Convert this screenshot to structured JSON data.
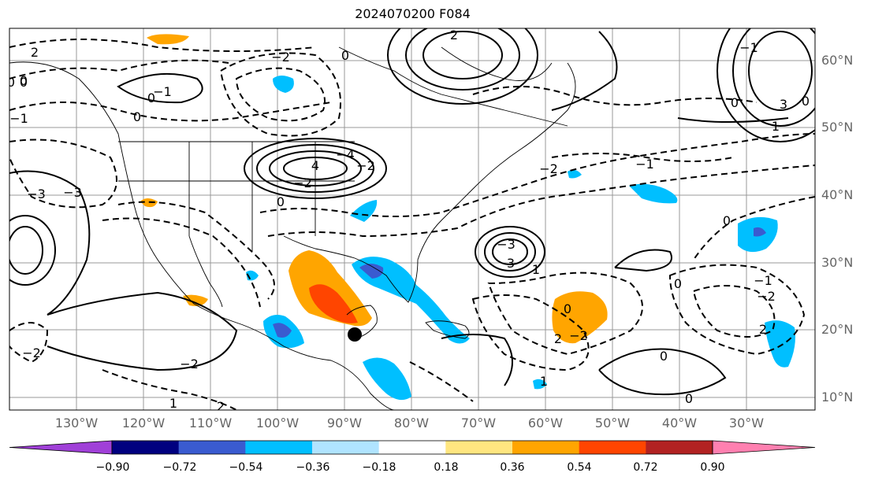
{
  "title": "2024070200 F084",
  "lat_labels": [
    "60°N",
    "50°N",
    "40°N",
    "30°N",
    "20°N",
    "10°N"
  ],
  "lon_labels": [
    "130°W",
    "120°W",
    "110°W",
    "100°W",
    "90°W",
    "80°W",
    "70°W",
    "60°W",
    "50°W",
    "40°W",
    "30°W"
  ],
  "colorbar": {
    "ticks": [
      "−0.90",
      "−0.72",
      "−0.54",
      "−0.36",
      "−0.18",
      "0.18",
      "0.36",
      "0.54",
      "0.72",
      "0.90"
    ],
    "colors": [
      "#a040d8",
      "#00007f",
      "#3a5bd0",
      "#00bfff",
      "#b0e4ff",
      "#ffffff",
      "#ffe680",
      "#ffa500",
      "#ff4500",
      "#b22222",
      "#ff80b0"
    ]
  },
  "contour_labels": [
    "2",
    "0",
    "−1",
    "0",
    "−2",
    "4",
    "−2",
    "0",
    "−4",
    "−3",
    "−3",
    "0",
    "0",
    "2",
    "−2",
    "−3",
    "3",
    "1",
    "−2",
    "−1",
    "0",
    "−2",
    "2",
    "0",
    "0",
    "−1",
    "0",
    "3",
    "−1",
    "−2",
    "2",
    "0",
    "1",
    "0",
    "−2",
    "1",
    "2",
    "0",
    "1",
    "−2",
    "−1",
    "0",
    "0"
  ],
  "marker": "filled-circle"
}
